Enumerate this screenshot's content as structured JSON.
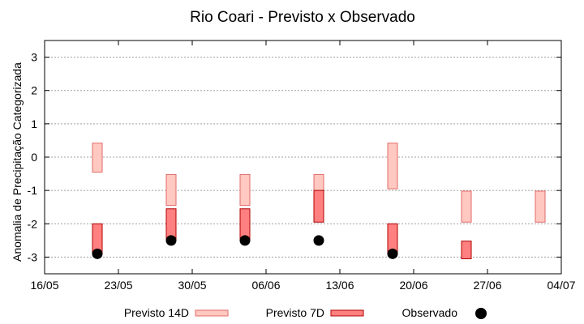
{
  "chart_data": {
    "type": "bar",
    "title": "Rio Coari - Previsto x Observado",
    "xlabel": "",
    "ylabel": "Anomalia de Precipitação Categorizada",
    "ylim": [
      -3.5,
      3.5
    ],
    "yticks": [
      -3,
      -2,
      -1,
      0,
      1,
      2,
      3
    ],
    "xlim": [
      "2022-05-16",
      "2022-07-04"
    ],
    "xticks": [
      "16/05",
      "23/05",
      "30/05",
      "06/06",
      "13/06",
      "20/06",
      "27/06",
      "04/07"
    ],
    "grid": "horizontal dotted",
    "legend_position": "bottom",
    "series": [
      {
        "name": "Previsto 14D",
        "kind": "range-bar",
        "color": "#ffc8c0",
        "edge_color": "#e26a6a",
        "values": [
          {
            "x": "2022-05-21",
            "low": -0.45,
            "high": 0.42
          },
          {
            "x": "2022-05-28",
            "low": -1.45,
            "high": -0.52
          },
          {
            "x": "2022-06-04",
            "low": -1.45,
            "high": -0.52
          },
          {
            "x": "2022-06-11",
            "low": -1.0,
            "high": -0.52
          },
          {
            "x": "2022-06-18",
            "low": -0.95,
            "high": 0.42
          },
          {
            "x": "2022-06-25",
            "low": -1.95,
            "high": -1.02
          },
          {
            "x": "2022-07-02",
            "low": -1.95,
            "high": -1.02
          }
        ]
      },
      {
        "name": "Previsto 7D",
        "kind": "range-bar",
        "color": "#ff8080",
        "edge_color": "#b00000",
        "values": [
          {
            "x": "2022-05-21",
            "low": -2.9,
            "high": -2.0
          },
          {
            "x": "2022-05-28",
            "low": -2.5,
            "high": -1.55
          },
          {
            "x": "2022-06-04",
            "low": -2.5,
            "high": -1.55
          },
          {
            "x": "2022-06-11",
            "low": -1.95,
            "high": -1.0
          },
          {
            "x": "2022-06-18",
            "low": -2.9,
            "high": -2.0
          },
          {
            "x": "2022-06-25",
            "low": -3.05,
            "high": -2.52
          }
        ]
      },
      {
        "name": "Observado",
        "kind": "scatter",
        "color": "#000000",
        "values": [
          {
            "x": "2022-05-21",
            "y": -2.9
          },
          {
            "x": "2022-05-28",
            "y": -2.5
          },
          {
            "x": "2022-06-04",
            "y": -2.5
          },
          {
            "x": "2022-06-11",
            "y": -2.5
          },
          {
            "x": "2022-06-18",
            "y": -2.9
          }
        ]
      }
    ]
  }
}
